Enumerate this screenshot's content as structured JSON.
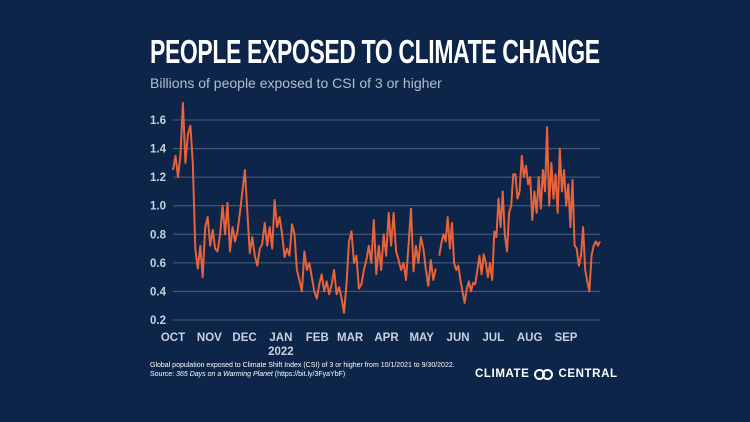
{
  "title": "PEOPLE EXPOSED TO CLIMATE CHANGE",
  "subtitle": "Billions of people exposed to CSI of 3 or higher",
  "footnote": {
    "line1": "Global population exposed to Climate Shift Index (CSI) of 3 or higher from 10/1/2021 to 9/30/2022.",
    "source_prefix": "Source: ",
    "source_title": "365 Days on a Warming Planet",
    "source_link": " (https://bit.ly/3FyaYbF)"
  },
  "logo": {
    "left": "CLIMATE",
    "right": "CENTRAL"
  },
  "colors": {
    "background": "#0c2549",
    "line": "#e8623a",
    "grid": "#4a6283"
  },
  "chart_data": {
    "type": "line",
    "title": "PEOPLE EXPOSED TO CLIMATE CHANGE",
    "ylabel": "Billions of people exposed to CSI of 3 or higher",
    "xrange": [
      "2021-10-01",
      "2022-09-30"
    ],
    "ylim": [
      0.2,
      1.7
    ],
    "yticks": [
      "0.2",
      "0.4",
      "0.6",
      "0.8",
      "1.0",
      "1.2",
      "1.4",
      "1.6"
    ],
    "xticks": [
      {
        "label": "OCT",
        "date": "2021-10-01"
      },
      {
        "label": "NOV",
        "date": "2021-11-01"
      },
      {
        "label": "DEC",
        "date": "2021-12-01"
      },
      {
        "label": "JAN",
        "date": "2022-01-01",
        "sub": "2022"
      },
      {
        "label": "FEB",
        "date": "2022-02-01"
      },
      {
        "label": "MAR",
        "date": "2022-03-01"
      },
      {
        "label": "APR",
        "date": "2022-04-01"
      },
      {
        "label": "MAY",
        "date": "2022-05-01"
      },
      {
        "label": "JUN",
        "date": "2022-06-01"
      },
      {
        "label": "JUL",
        "date": "2022-07-01"
      },
      {
        "label": "AUG",
        "date": "2022-08-01"
      },
      {
        "label": "SEP",
        "date": "2022-09-01"
      }
    ],
    "grid": true,
    "segments": [
      {
        "start": "2021-10-01",
        "end": "2022-05-13",
        "values": [
          1.25,
          1.35,
          1.2,
          1.35,
          1.72,
          1.3,
          1.5,
          1.56,
          1.3,
          0.7,
          0.56,
          0.72,
          0.5,
          0.85,
          0.92,
          0.72,
          0.83,
          0.7,
          0.68,
          0.8,
          1.0,
          0.8,
          1.02,
          0.68,
          0.85,
          0.75,
          0.82,
          0.95,
          1.1,
          1.25,
          0.95,
          0.67,
          0.78,
          0.65,
          0.58,
          0.7,
          0.73,
          0.88,
          0.72,
          0.85,
          0.7,
          1.04,
          0.85,
          0.92,
          0.8,
          0.64,
          0.7,
          0.65,
          0.87,
          0.8,
          0.55,
          0.48,
          0.4,
          0.68,
          0.55,
          0.6,
          0.5,
          0.4,
          0.35,
          0.45,
          0.52,
          0.4,
          0.47,
          0.38,
          0.45,
          0.55,
          0.38,
          0.43,
          0.35,
          0.25,
          0.45,
          0.75,
          0.82,
          0.6,
          0.65,
          0.42,
          0.45,
          0.55,
          0.62,
          0.72,
          0.6,
          0.9,
          0.52,
          0.72,
          0.55,
          0.8,
          0.65,
          0.95,
          0.72,
          0.95,
          0.68,
          0.62,
          0.55,
          0.6,
          0.48,
          0.72,
          0.98,
          0.54,
          0.72,
          0.6,
          0.78,
          0.7,
          0.55,
          0.44,
          0.62,
          0.48,
          0.56
        ]
      },
      {
        "start": "2022-05-16",
        "end": "2022-09-30",
        "values": [
          0.65,
          0.74,
          0.8,
          0.75,
          0.92,
          0.7,
          0.88,
          0.6,
          0.55,
          0.58,
          0.48,
          0.4,
          0.32,
          0.42,
          0.47,
          0.4,
          0.46,
          0.45,
          0.55,
          0.65,
          0.52,
          0.66,
          0.6,
          0.5,
          0.6,
          0.48,
          0.82,
          0.78,
          1.05,
          0.85,
          1.1,
          0.8,
          0.68,
          0.95,
          1.0,
          1.22,
          1.22,
          1.05,
          1.1,
          1.35,
          1.2,
          1.28,
          1.15,
          1.2,
          0.9,
          1.1,
          0.95,
          1.2,
          0.98,
          1.25,
          1.1,
          1.55,
          1.0,
          1.3,
          1.05,
          1.22,
          0.95,
          1.4,
          1.1,
          1.25,
          1.0,
          1.15,
          0.85,
          1.18,
          0.72,
          0.7,
          0.58,
          0.65,
          0.85,
          0.55,
          0.47,
          0.4,
          0.65,
          0.72,
          0.75,
          0.72,
          0.75
        ]
      }
    ]
  }
}
